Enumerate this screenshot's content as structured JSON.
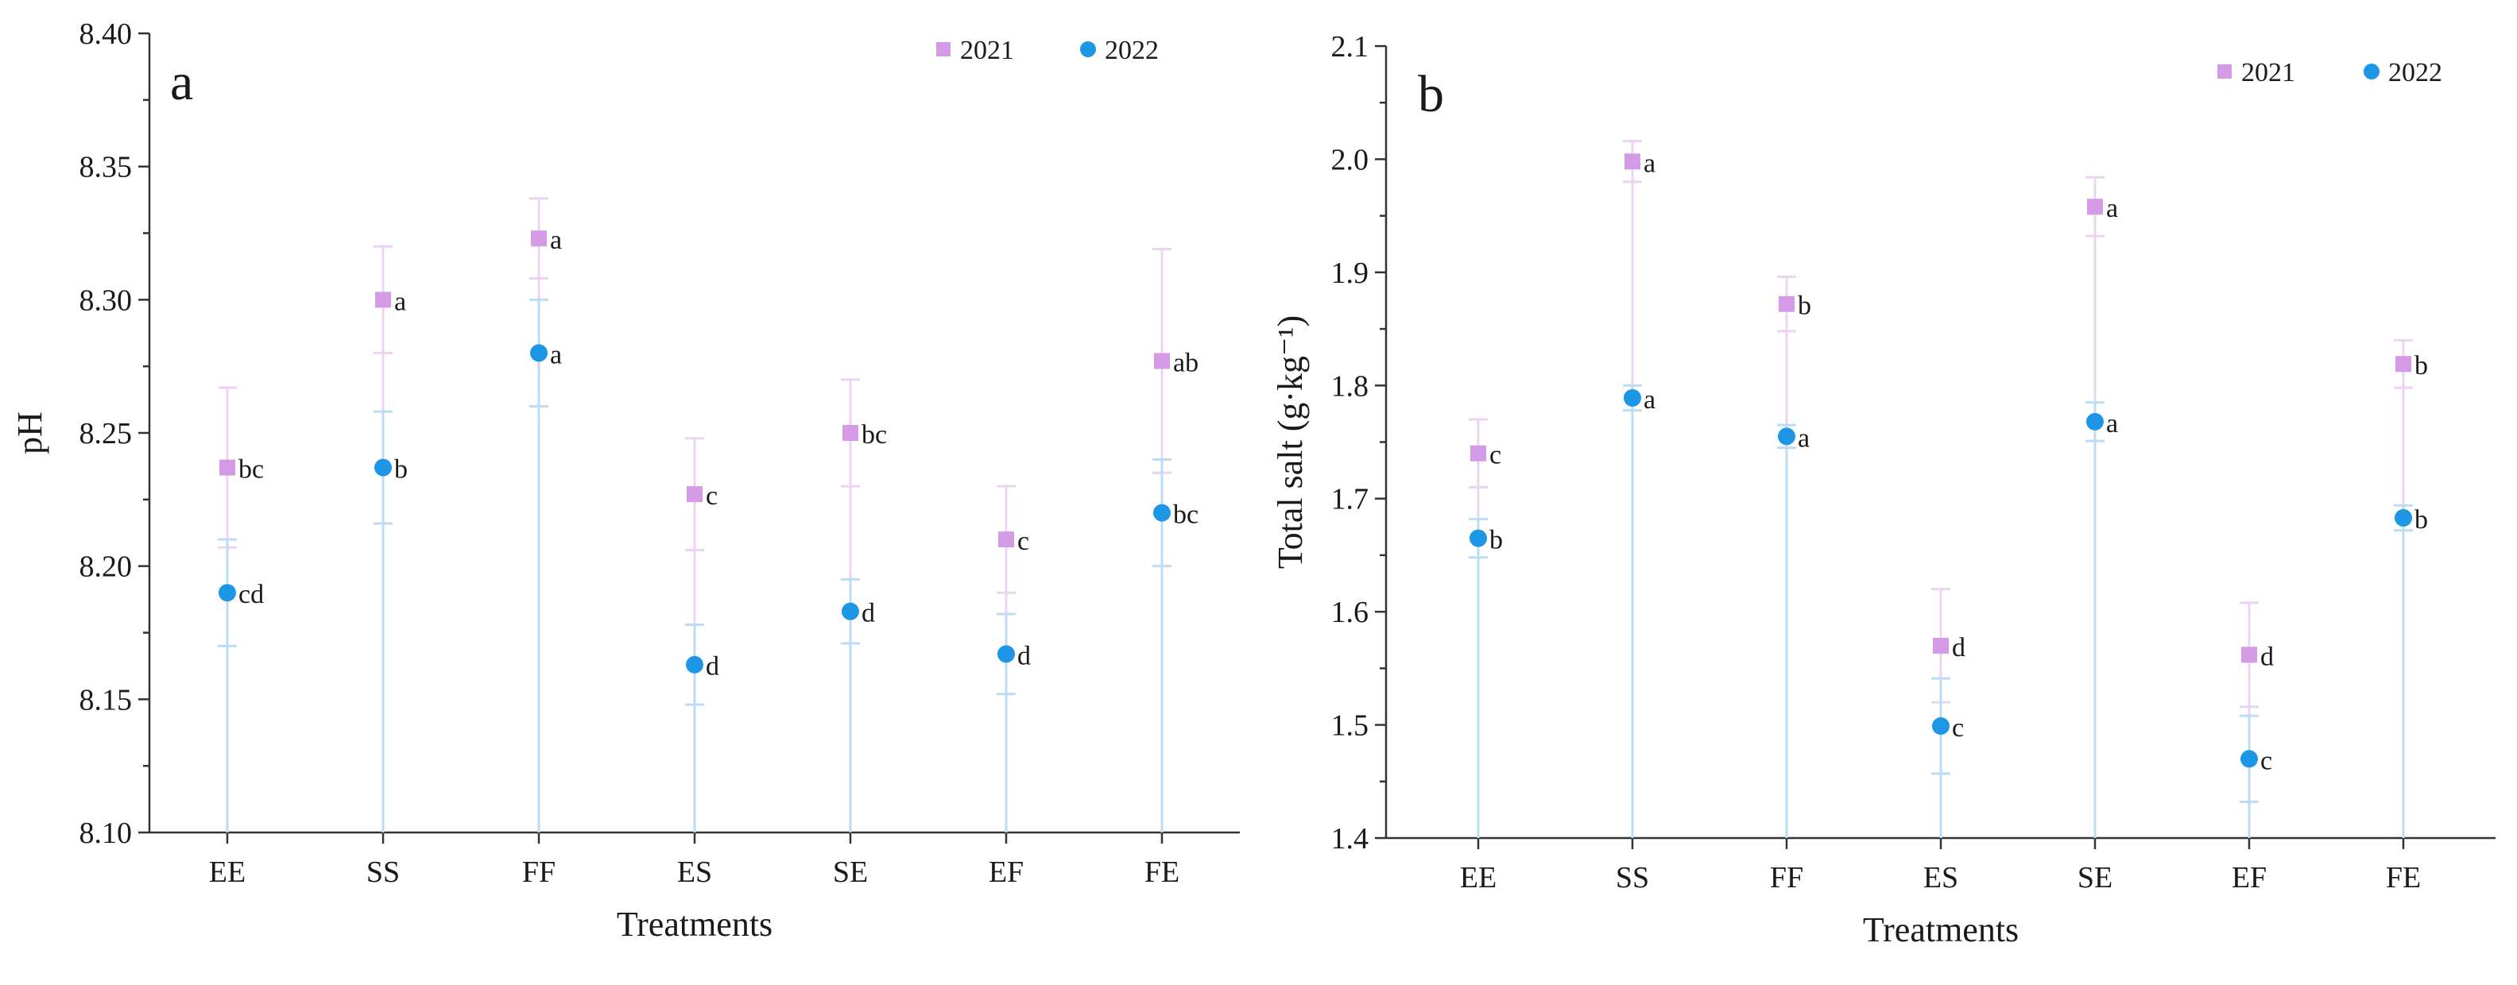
{
  "colors": {
    "s2021": "#d49ae6",
    "s2022": "#1e96e6",
    "err2021": "#ecd3f3",
    "err2022": "#bcdcf3",
    "axis": "#333333"
  },
  "chart_data": [
    {
      "type": "scatter",
      "panel_letter": "a",
      "xlabel": "Treatments",
      "ylabel": "pH",
      "ylim": [
        8.1,
        8.4
      ],
      "yticks": [
        "8.10",
        "8.15",
        "8.20",
        "8.25",
        "8.30",
        "8.35",
        "8.40"
      ],
      "categories": [
        "EE",
        "SS",
        "FF",
        "ES",
        "SE",
        "EF",
        "FE"
      ],
      "legend_position": "top-right",
      "series": [
        {
          "name": "2021",
          "marker": "square",
          "values": [
            8.237,
            8.3,
            8.323,
            8.227,
            8.25,
            8.21,
            8.277
          ],
          "errors": [
            0.03,
            0.02,
            0.015,
            0.021,
            0.02,
            0.02,
            0.042
          ],
          "labels": [
            "bc",
            "a",
            "a",
            "c",
            "bc",
            "c",
            "ab"
          ]
        },
        {
          "name": "2022",
          "marker": "circle",
          "values": [
            8.19,
            8.237,
            8.28,
            8.163,
            8.183,
            8.167,
            8.22
          ],
          "errors": [
            0.02,
            0.021,
            0.02,
            0.015,
            0.012,
            0.015,
            0.02
          ],
          "labels": [
            "cd",
            "b",
            "a",
            "d",
            "d",
            "d",
            "bc"
          ]
        }
      ]
    },
    {
      "type": "scatter",
      "panel_letter": "b",
      "xlabel": "Treatments",
      "ylabel": "Total salt (g·kg⁻¹)",
      "ylim": [
        1.4,
        2.1
      ],
      "yticks": [
        "1.4",
        "1.5",
        "1.6",
        "1.7",
        "1.8",
        "1.9",
        "2.0",
        "2.1"
      ],
      "categories": [
        "EE",
        "SS",
        "FF",
        "ES",
        "SE",
        "EF",
        "FE"
      ],
      "legend_position": "top-right",
      "series": [
        {
          "name": "2021",
          "marker": "square",
          "values": [
            1.74,
            1.998,
            1.872,
            1.57,
            1.958,
            1.562,
            1.819
          ],
          "errors": [
            0.03,
            0.018,
            0.024,
            0.05,
            0.026,
            0.046,
            0.021
          ],
          "labels": [
            "c",
            "a",
            "b",
            "d",
            "a",
            "d",
            "b"
          ]
        },
        {
          "name": "2022",
          "marker": "circle",
          "values": [
            1.665,
            1.789,
            1.755,
            1.499,
            1.768,
            1.47,
            1.683
          ],
          "errors": [
            0.017,
            0.011,
            0.01,
            0.042,
            0.017,
            0.038,
            0.011
          ],
          "labels": [
            "b",
            "a",
            "a",
            "c",
            "a",
            "c",
            "b"
          ]
        }
      ]
    }
  ]
}
